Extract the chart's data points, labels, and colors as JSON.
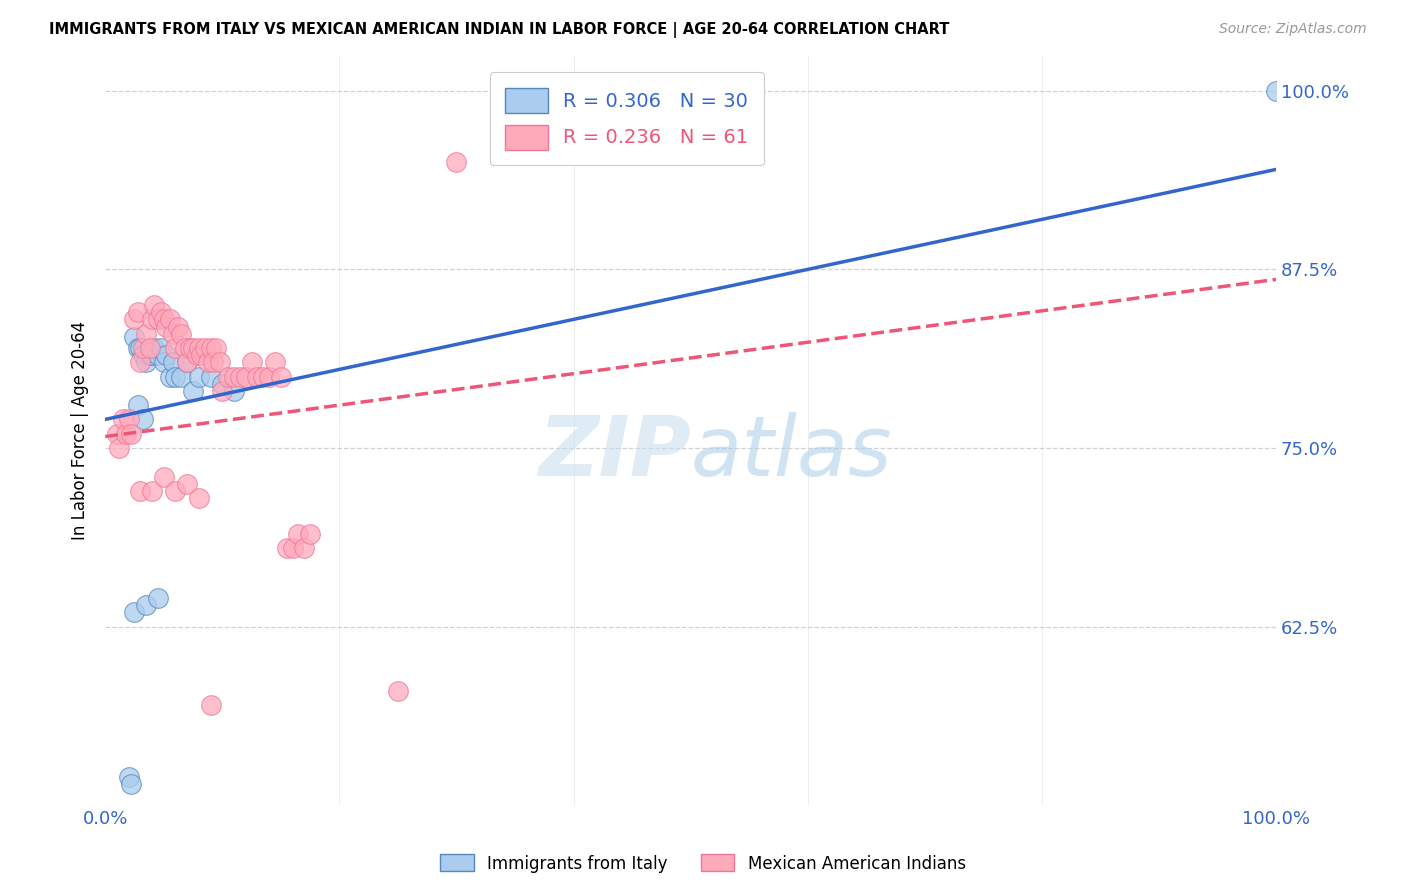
{
  "title": "IMMIGRANTS FROM ITALY VS MEXICAN AMERICAN INDIAN IN LABOR FORCE | AGE 20-64 CORRELATION CHART",
  "source": "Source: ZipAtlas.com",
  "ylabel": "In Labor Force | Age 20-64",
  "ytick_vals": [
    0.625,
    0.75,
    0.875,
    1.0
  ],
  "ytick_labels": [
    "62.5%",
    "75.0%",
    "87.5%",
    "100.0%"
  ],
  "xtick_vals": [
    0.0,
    0.2,
    0.4,
    0.6,
    0.8,
    1.0
  ],
  "xtick_labels": [
    "0.0%",
    "",
    "",
    "",
    "",
    "100.0%"
  ],
  "watermark_zip": "ZIP",
  "watermark_atlas": "atlas",
  "series1_face": "#aaccee",
  "series1_edge": "#5588bb",
  "series2_face": "#ffaabb",
  "series2_edge": "#ee7799",
  "line1_color": "#3366cc",
  "line2_color": "#ee5577",
  "xmin": 0.0,
  "xmax": 1.0,
  "ymin": 0.5,
  "ymax": 1.025,
  "blue_x": [
    0.02,
    0.022,
    0.025,
    0.028,
    0.03,
    0.032,
    0.035,
    0.038,
    0.04,
    0.042,
    0.045,
    0.048,
    0.05,
    0.052,
    0.055,
    0.058,
    0.06,
    0.065,
    0.07,
    0.075,
    0.08,
    0.09,
    0.1,
    0.11,
    0.025,
    0.035,
    0.045,
    0.028,
    0.032,
    1.0
  ],
  "blue_y": [
    0.52,
    0.515,
    0.828,
    0.82,
    0.82,
    0.815,
    0.81,
    0.815,
    0.815,
    0.82,
    0.815,
    0.82,
    0.81,
    0.815,
    0.8,
    0.81,
    0.8,
    0.8,
    0.81,
    0.79,
    0.8,
    0.8,
    0.795,
    0.79,
    0.635,
    0.64,
    0.645,
    0.78,
    0.77,
    1.0
  ],
  "pink_x": [
    0.01,
    0.012,
    0.015,
    0.018,
    0.02,
    0.022,
    0.025,
    0.028,
    0.03,
    0.032,
    0.035,
    0.038,
    0.04,
    0.042,
    0.045,
    0.048,
    0.05,
    0.052,
    0.055,
    0.058,
    0.06,
    0.062,
    0.065,
    0.068,
    0.07,
    0.072,
    0.075,
    0.078,
    0.08,
    0.082,
    0.085,
    0.088,
    0.09,
    0.092,
    0.095,
    0.098,
    0.1,
    0.105,
    0.11,
    0.115,
    0.12,
    0.125,
    0.13,
    0.135,
    0.14,
    0.145,
    0.15,
    0.155,
    0.16,
    0.165,
    0.17,
    0.175,
    0.03,
    0.04,
    0.05,
    0.06,
    0.07,
    0.08,
    0.09,
    0.3,
    0.25
  ],
  "pink_y": [
    0.76,
    0.75,
    0.77,
    0.76,
    0.77,
    0.76,
    0.84,
    0.845,
    0.81,
    0.82,
    0.83,
    0.82,
    0.84,
    0.85,
    0.84,
    0.845,
    0.84,
    0.835,
    0.84,
    0.83,
    0.82,
    0.835,
    0.83,
    0.82,
    0.81,
    0.82,
    0.82,
    0.815,
    0.82,
    0.815,
    0.82,
    0.81,
    0.82,
    0.81,
    0.82,
    0.81,
    0.79,
    0.8,
    0.8,
    0.8,
    0.8,
    0.81,
    0.8,
    0.8,
    0.8,
    0.81,
    0.8,
    0.68,
    0.68,
    0.69,
    0.68,
    0.69,
    0.72,
    0.72,
    0.73,
    0.72,
    0.725,
    0.715,
    0.57,
    0.95,
    0.58
  ],
  "legend1_label": "R = 0.306   N = 30",
  "legend2_label": "R = 0.236   N = 61",
  "legend1_color": "#3366cc",
  "legend2_color": "#ee5577",
  "bottom_legend1": "Immigrants from Italy",
  "bottom_legend2": "Mexican American Indians"
}
